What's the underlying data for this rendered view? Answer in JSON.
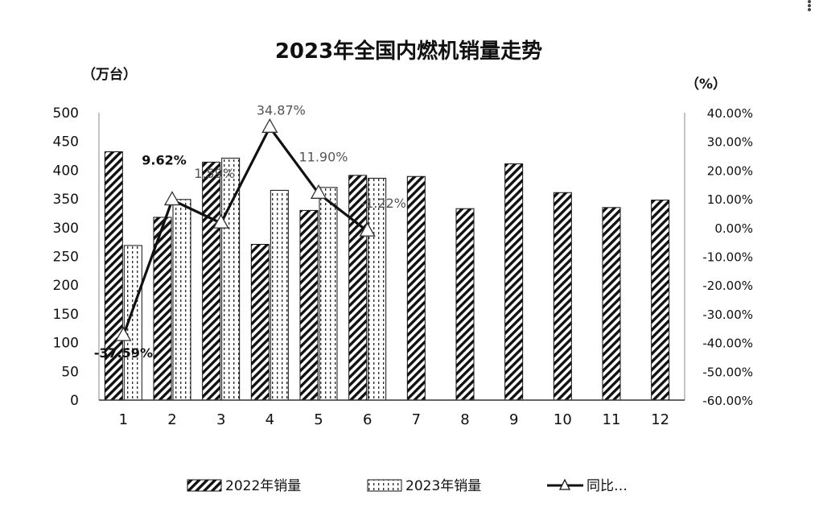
{
  "chart_data": {
    "type": "bar",
    "title": "2023年全国内燃机销量走势",
    "ylabel_left": "（万台）",
    "ylabel_right": "（%）",
    "categories": [
      "1",
      "2",
      "3",
      "4",
      "5",
      "6",
      "7",
      "8",
      "9",
      "10",
      "11",
      "12"
    ],
    "y_left": {
      "lim": [
        0,
        500
      ],
      "ticks": [
        "0",
        "50",
        "100",
        "150",
        "200",
        "250",
        "300",
        "350",
        "400",
        "450",
        "500"
      ]
    },
    "y_right": {
      "lim": [
        -60,
        40
      ],
      "ticks": [
        "-60.00%",
        "-50.00%",
        "-40.00%",
        "-30.00%",
        "-20.00%",
        "-10.00%",
        "0.00%",
        "10.00%",
        "20.00%",
        "30.00%",
        "40.00%"
      ]
    },
    "series": [
      {
        "name": "2022年销量",
        "type": "bar",
        "pattern": "diagonal-hatch",
        "values": [
          432,
          318,
          414,
          271,
          330,
          391,
          389,
          333,
          411,
          361,
          335,
          348
        ]
      },
      {
        "name": "2023年销量",
        "type": "bar",
        "pattern": "dotted",
        "values": [
          269,
          349,
          421,
          365,
          370,
          386,
          null,
          null,
          null,
          null,
          null,
          null
        ]
      },
      {
        "name": "同比…",
        "type": "line",
        "axis": "right",
        "marker": "triangle",
        "values": [
          -37.59,
          9.62,
          1.59,
          34.87,
          11.9,
          -1.22,
          null,
          null,
          null,
          null,
          null,
          null
        ]
      }
    ],
    "data_labels": [
      "-37.59%",
      "9.62%",
      "1.59%",
      "34.87%",
      "11.90%",
      "-1.22%"
    ],
    "legend_position": "bottom",
    "grid": false
  }
}
